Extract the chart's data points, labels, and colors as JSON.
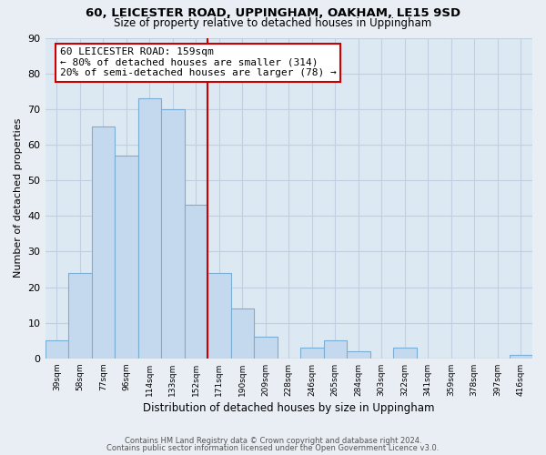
{
  "title1": "60, LEICESTER ROAD, UPPINGHAM, OAKHAM, LE15 9SD",
  "title2": "Size of property relative to detached houses in Uppingham",
  "xlabel": "Distribution of detached houses by size in Uppingham",
  "ylabel": "Number of detached properties",
  "bar_labels": [
    "39sqm",
    "58sqm",
    "77sqm",
    "96sqm",
    "114sqm",
    "133sqm",
    "152sqm",
    "171sqm",
    "190sqm",
    "209sqm",
    "228sqm",
    "246sqm",
    "265sqm",
    "284sqm",
    "303sqm",
    "322sqm",
    "341sqm",
    "359sqm",
    "378sqm",
    "397sqm",
    "416sqm"
  ],
  "bar_values": [
    5,
    24,
    65,
    57,
    73,
    70,
    43,
    24,
    14,
    6,
    0,
    3,
    5,
    2,
    0,
    3,
    0,
    0,
    0,
    0,
    1
  ],
  "bar_color": "#c5d9ee",
  "bar_edge_color": "#7aaed4",
  "highlight_index": 6,
  "annotation_text": "60 LEICESTER ROAD: 159sqm\n← 80% of detached houses are smaller (314)\n20% of semi-detached houses are larger (78) →",
  "annotation_box_color": "white",
  "annotation_box_edge_color": "#cc0000",
  "vline_color": "#cc0000",
  "ylim": [
    0,
    90
  ],
  "yticks": [
    0,
    10,
    20,
    30,
    40,
    50,
    60,
    70,
    80,
    90
  ],
  "footer1": "Contains HM Land Registry data © Crown copyright and database right 2024.",
  "footer2": "Contains public sector information licensed under the Open Government Licence v3.0.",
  "bg_color": "#e8eef4",
  "plot_bg_color": "#dce8f2",
  "grid_color": "#c0d0e0"
}
